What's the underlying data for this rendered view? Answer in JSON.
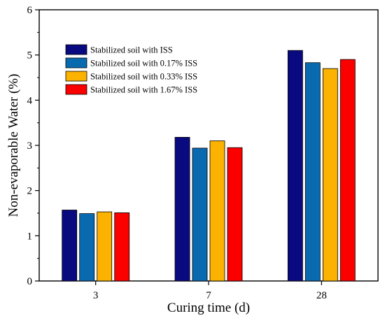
{
  "chart_data": {
    "type": "bar",
    "title": "",
    "xlabel": "Curing time (d)",
    "ylabel": "Non-evaporable Water (%)",
    "categories": [
      "3",
      "7",
      "28"
    ],
    "ylim": [
      0,
      6
    ],
    "yticks": [
      0,
      1,
      2,
      3,
      4,
      5,
      6
    ],
    "grid": false,
    "legend_position": "top-left",
    "series": [
      {
        "name": "Stabilized soil with ISS",
        "color": "#0a0a80",
        "values": [
          1.57,
          3.18,
          5.1
        ]
      },
      {
        "name": "Stabilized soil with 0.17% ISS",
        "color": "#0a6ab0",
        "values": [
          1.49,
          2.94,
          4.83
        ]
      },
      {
        "name": "Stabilized soil with 0.33% ISS",
        "color": "#fbb200",
        "values": [
          1.53,
          3.1,
          4.7
        ]
      },
      {
        "name": "Stabilized soil with 1.67% ISS",
        "color": "#fc0000",
        "values": [
          1.51,
          2.95,
          4.9
        ]
      }
    ]
  }
}
